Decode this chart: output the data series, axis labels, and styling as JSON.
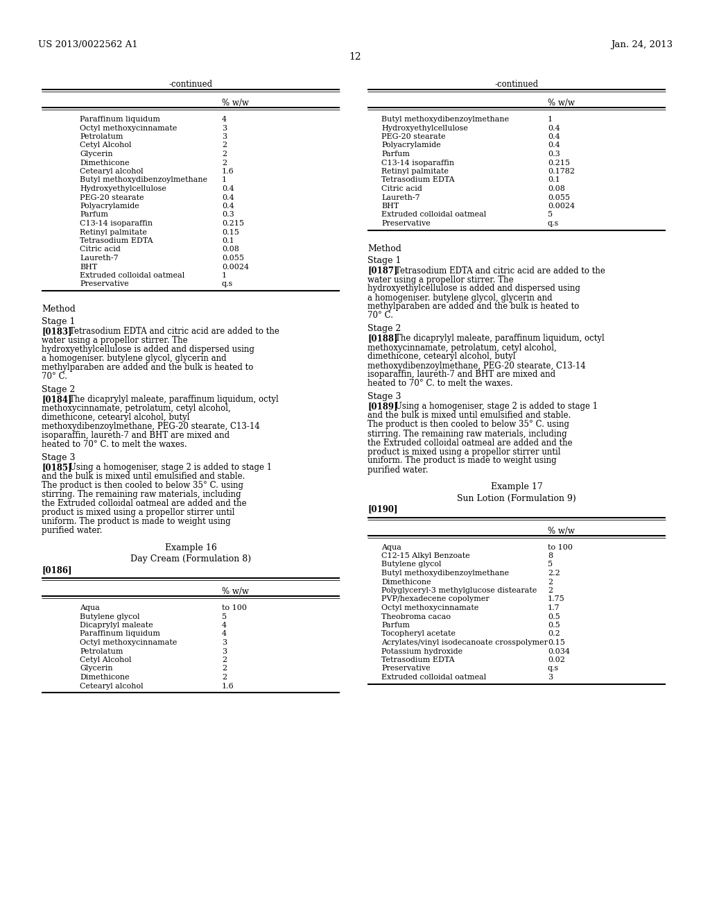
{
  "header_left": "US 2013/0022562 A1",
  "header_right": "Jan. 24, 2013",
  "page_number": "12",
  "background_color": "#ffffff",
  "left_table_title": "-continued",
  "left_table_header": "% w/w",
  "left_table_rows": [
    [
      "Paraffinum liquidum",
      "4"
    ],
    [
      "Octyl methoxycinnamate",
      "3"
    ],
    [
      "Petrolatum",
      "3"
    ],
    [
      "Cetyl Alcohol",
      "2"
    ],
    [
      "Glycerin",
      "2"
    ],
    [
      "Dimethicone",
      "2"
    ],
    [
      "Cetearyl alcohol",
      "1.6"
    ],
    [
      "Butyl methoxydibenzoylmethane",
      "1"
    ],
    [
      "Hydroxyethylcellulose",
      "0.4"
    ],
    [
      "PEG-20 stearate",
      "0.4"
    ],
    [
      "Polyacrylamide",
      "0.4"
    ],
    [
      "Parfum",
      "0.3"
    ],
    [
      "C13-14 isoparaffin",
      "0.215"
    ],
    [
      "Retinyl palmitate",
      "0.15"
    ],
    [
      "Tetrasodium EDTA",
      "0.1"
    ],
    [
      "Citric acid",
      "0.08"
    ],
    [
      "Laureth-7",
      "0.055"
    ],
    [
      "BHT",
      "0.0024"
    ],
    [
      "Extruded colloidal oatmeal",
      "1"
    ],
    [
      "Preservative",
      "q.s"
    ]
  ],
  "left_method_title": "Method",
  "left_stage1_title": "Stage 1",
  "left_stage1_ref": "[0183]",
  "left_stage1_text": "Tetrasodium EDTA and citric acid are added to the water using a propellor stirrer. The hydroxyethylcellulose is added and dispersed using a homogeniser. butylene glycol, glycerin and methylparaben are added and the bulk is heated to 70° C.",
  "left_stage2_title": "Stage 2",
  "left_stage2_ref": "[0184]",
  "left_stage2_text": "The dicaprylyl maleate, paraffinum liquidum, octyl methoxycinnamate, petrolatum, cetyl alcohol, dimethicone, cetearyl alcohol, butyl methoxydibenzoylmethane, PEG-20 stearate, C13-14 isoparaffin, laureth-7 and BHT are mixed and heated to 70° C. to melt the waxes.",
  "left_stage3_title": "Stage 3",
  "left_stage3_ref": "[0185]",
  "left_stage3_text": "Using a homogeniser, stage 2 is added to stage 1 and the bulk is mixed until emulsified and stable. The product is then cooled to below 35° C. using stirring. The remaining raw materials, including the Extruded colloidal oatmeal are added and the product is mixed using a propellor stirrer until uniform. The product is made to weight using purified water.",
  "left_example_title": "Example 16",
  "left_example_subtitle": "Day Cream (Formulation 8)",
  "left_example_ref": "[0186]",
  "left_table2_header": "% w/w",
  "left_table2_rows": [
    [
      "Aqua",
      "to 100"
    ],
    [
      "Butylene glycol",
      "5"
    ],
    [
      "Dicaprylyl maleate",
      "4"
    ],
    [
      "Paraffinum liquidum",
      "4"
    ],
    [
      "Octyl methoxycinnamate",
      "3"
    ],
    [
      "Petrolatum",
      "3"
    ],
    [
      "Cetyl Alcohol",
      "2"
    ],
    [
      "Glycerin",
      "2"
    ],
    [
      "Dimethicone",
      "2"
    ],
    [
      "Cetearyl alcohol",
      "1.6"
    ]
  ],
  "right_table_title": "-continued",
  "right_table_header": "% w/w",
  "right_table_rows": [
    [
      "Butyl methoxydibenzoylmethane",
      "1"
    ],
    [
      "Hydroxyethylcellulose",
      "0.4"
    ],
    [
      "PEG-20 stearate",
      "0.4"
    ],
    [
      "Polyacrylamide",
      "0.4"
    ],
    [
      "Parfum",
      "0.3"
    ],
    [
      "C13-14 isoparaffin",
      "0.215"
    ],
    [
      "Retinyl palmitate",
      "0.1782"
    ],
    [
      "Tetrasodium EDTA",
      "0.1"
    ],
    [
      "Citric acid",
      "0.08"
    ],
    [
      "Laureth-7",
      "0.055"
    ],
    [
      "BHT",
      "0.0024"
    ],
    [
      "Extruded colloidal oatmeal",
      "5"
    ],
    [
      "Preservative",
      "q.s"
    ]
  ],
  "right_method_title": "Method",
  "right_stage1_title": "Stage 1",
  "right_stage1_ref": "[0187]",
  "right_stage1_text": "Tetrasodium EDTA and citric acid are added to the water using a propellor stirrer. The hydroxyethylcellulose is added and dispersed using a homogeniser. butylene glycol, glycerin and methylparaben are added and the bulk is heated to 70° C.",
  "right_stage2_title": "Stage 2",
  "right_stage2_ref": "[0188]",
  "right_stage2_text": "The dicaprylyl maleate, paraffinum liquidum, octyl methoxycinnamate, petrolatum, cetyl alcohol, dimethicone, cetearyl alcohol, butyl methoxydibenzoylmethane, PEG-20 stearate, C13-14 isoparaffin, laureth-7 and BHT are mixed and heated to 70° C. to melt the waxes.",
  "right_stage3_title": "Stage 3",
  "right_stage3_ref": "[0189]",
  "right_stage3_text": "Using a homogeniser, stage 2 is added to stage 1 and the bulk is mixed until emulsified and stable. The product is then cooled to below 35° C. using stirring. The remaining raw materials, including the Extruded colloidal oatmeal are added and the product is mixed using a propellor stirrer until uniform. The product is made to weight using purified water.",
  "right_example_title": "Example 17",
  "right_example_subtitle": "Sun Lotion (Formulation 9)",
  "right_example_ref": "[0190]",
  "right_table2_header": "% w/w",
  "right_table2_rows": [
    [
      "Aqua",
      "to 100"
    ],
    [
      "C12-15 Alkyl Benzoate",
      "8"
    ],
    [
      "Butylene glycol",
      "5"
    ],
    [
      "Butyl methoxydibenzoylmethane",
      "2.2"
    ],
    [
      "Dimethicone",
      "2"
    ],
    [
      "Polyglyceryl-3 methylglucose distearate",
      "2"
    ],
    [
      "PVP/hexadecene copolymer",
      "1.75"
    ],
    [
      "Octyl methoxycinnamate",
      "1.7"
    ],
    [
      "Theobroma cacao",
      "0.5"
    ],
    [
      "Parfum",
      "0.5"
    ],
    [
      "Tocopheryl acetate",
      "0.2"
    ],
    [
      "Acrylates/vinyl isodecanoate crosspolymer",
      "0.15"
    ],
    [
      "Potassium hydroxide",
      "0.034"
    ],
    [
      "Tetrasodium EDTA",
      "0.02"
    ],
    [
      "Preservative",
      "q.s"
    ],
    [
      "Extruded colloidal oatmeal",
      "3"
    ]
  ]
}
